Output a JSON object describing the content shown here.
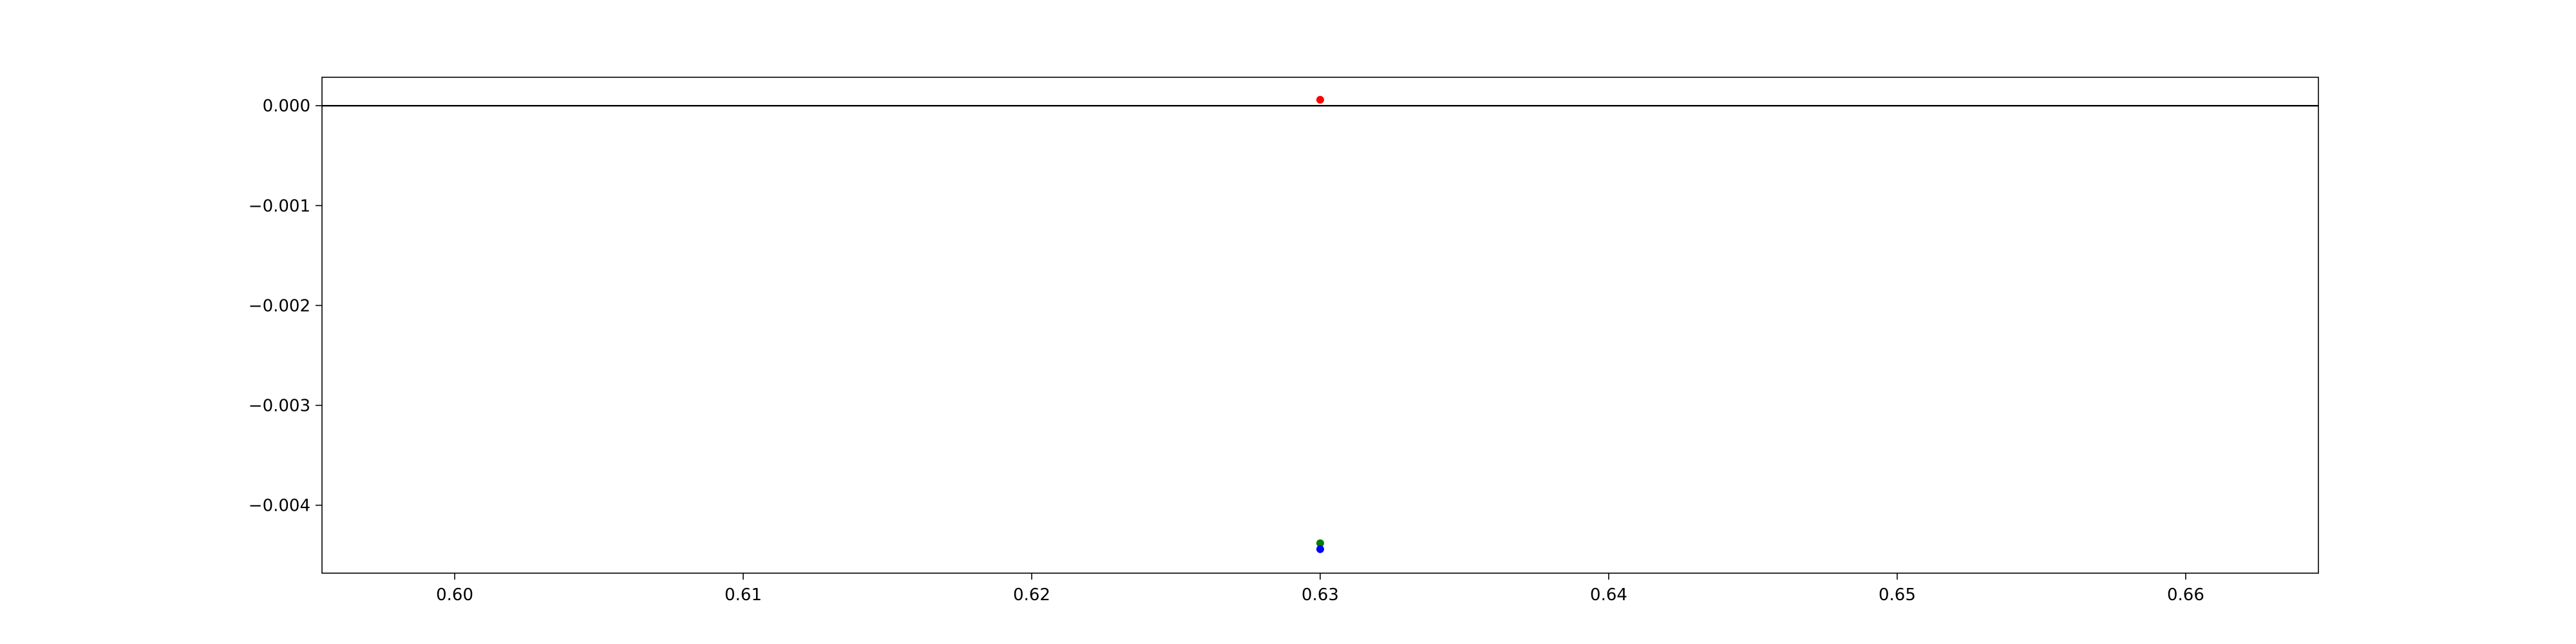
{
  "chart_data": {
    "type": "scatter",
    "title": "",
    "xlabel": "",
    "ylabel": "",
    "xlim": [
      0.5954,
      0.6646
    ],
    "ylim": [
      -0.00468,
      0.000285
    ],
    "x_ticks": [
      "0.60",
      "0.61",
      "0.62",
      "0.63",
      "0.64",
      "0.65",
      "0.66"
    ],
    "x_tick_values": [
      0.6,
      0.61,
      0.62,
      0.63,
      0.64,
      0.65,
      0.66
    ],
    "y_ticks": [
      "0.000",
      "−0.001",
      "−0.002",
      "−0.003",
      "−0.004"
    ],
    "y_tick_values": [
      0.0,
      -0.001,
      -0.002,
      -0.003,
      -0.004
    ],
    "grid": false,
    "reference_lines": [
      {
        "orientation": "horizontal",
        "y": 0.0,
        "color": "#000000"
      }
    ],
    "series": [
      {
        "color": "#ff0000",
        "x": [
          0.63
        ],
        "y": [
          6e-05
        ]
      },
      {
        "color": "#008000",
        "x": [
          0.63
        ],
        "y": [
          -0.00438
        ]
      },
      {
        "color": "#0000ff",
        "x": [
          0.63
        ],
        "y": [
          -0.00444
        ]
      }
    ]
  }
}
